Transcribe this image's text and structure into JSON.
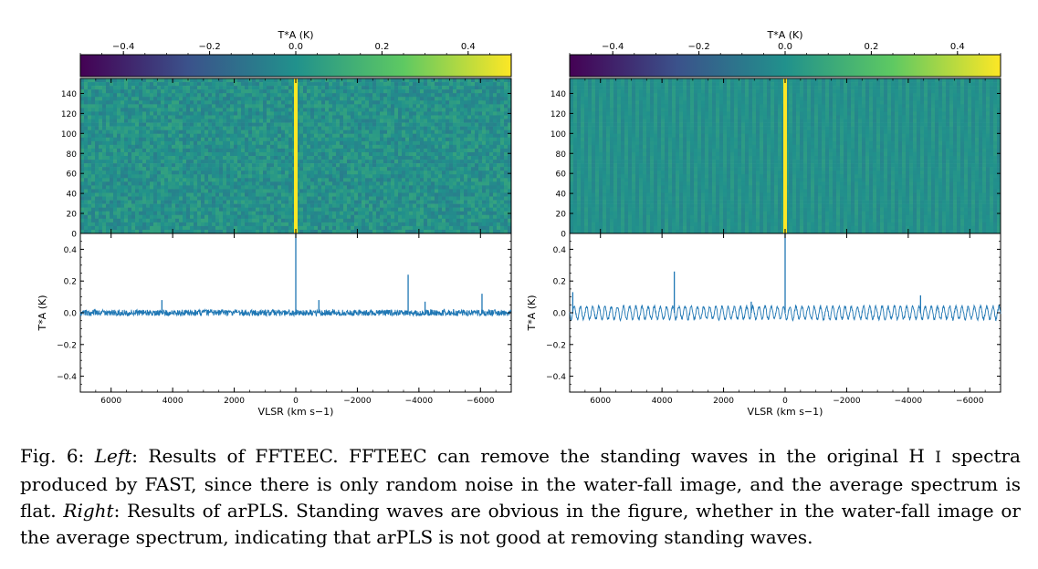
{
  "figure": {
    "panels": [
      {
        "id": "left",
        "colorbar_label": "T*A (K)",
        "colorbar_ticks": [
          "−0.4",
          "−0.2",
          "0.0",
          "0.2",
          "0.4"
        ],
        "waterfall_yticks": [
          "0",
          "20",
          "40",
          "60",
          "80",
          "100",
          "120",
          "140"
        ],
        "spectrum_ylabel": "T*A (K)",
        "spectrum_yticks": [
          "−0.4",
          "−0.2",
          "0.0",
          "0.2",
          "0.4"
        ],
        "xticks": [
          "6000",
          "4000",
          "2000",
          "0",
          "−2000",
          "−4000",
          "−6000"
        ],
        "xlabel": "VLSR (km s−1)"
      },
      {
        "id": "right",
        "colorbar_label": "T*A (K)",
        "colorbar_ticks": [
          "−0.4",
          "−0.2",
          "0.0",
          "0.2",
          "0.4"
        ],
        "waterfall_yticks": [
          "0",
          "20",
          "40",
          "60",
          "80",
          "100",
          "120",
          "140"
        ],
        "spectrum_ylabel": "T*A (K)",
        "spectrum_yticks": [
          "−0.4",
          "−0.2",
          "0.0",
          "0.2",
          "0.4"
        ],
        "xticks": [
          "6000",
          "4000",
          "2000",
          "0",
          "−2000",
          "−4000",
          "−6000"
        ],
        "xlabel": "VLSR (km s−1)"
      }
    ],
    "colors": {
      "viridis": [
        "#440154",
        "#3b528b",
        "#21918c",
        "#5ec962",
        "#fde725"
      ],
      "noise": "#20908d",
      "line": "#1f77b4"
    }
  },
  "chart_data": [
    {
      "type": "line",
      "panel": "left",
      "xlabel": "VLSR (km s−1)",
      "ylabel": "T*A (K)",
      "xlim": [
        7000,
        -7000
      ],
      "ylim": [
        -0.5,
        0.5
      ],
      "baseline": 0.0,
      "noise_amplitude": 0.02,
      "standing_wave": false,
      "spikes": [
        {
          "x": 4350,
          "y": 0.08
        },
        {
          "x": 0,
          "y": 0.5
        },
        {
          "x": -750,
          "y": 0.08
        },
        {
          "x": -3650,
          "y": 0.24
        },
        {
          "x": -4200,
          "y": 0.07
        },
        {
          "x": -6050,
          "y": 0.12
        }
      ]
    },
    {
      "type": "line",
      "panel": "right",
      "xlabel": "VLSR (km s−1)",
      "ylabel": "T*A (K)",
      "xlim": [
        7000,
        -7000
      ],
      "ylim": [
        -0.5,
        0.5
      ],
      "baseline": 0.0,
      "noise_amplitude": 0.01,
      "standing_wave": true,
      "wave_amplitude": 0.04,
      "wave_period_kms": 200,
      "spikes": [
        {
          "x": 6900,
          "y": 0.13
        },
        {
          "x": 3600,
          "y": 0.26
        },
        {
          "x": 1100,
          "y": 0.07
        },
        {
          "x": 0,
          "y": 0.5
        },
        {
          "x": -4400,
          "y": 0.11
        }
      ]
    }
  ],
  "caption": {
    "prefix": "Fig. 6: ",
    "left_word": "Left",
    "left_text": ": Results of FFTEEC. FFTEEC can remove the standing waves in the original ",
    "hi_h": "H ",
    "hi_i": "I",
    "mid_text": " spectra produced by FAST, since there is only random noise in the water-fall image, and the average spectrum is flat. ",
    "right_word": "Right",
    "right_text": ": Results of arPLS. Standing waves are obvious in the figure, whether in the water-fall image or the average spectrum, indicating that arPLS is not good at removing standing waves."
  }
}
